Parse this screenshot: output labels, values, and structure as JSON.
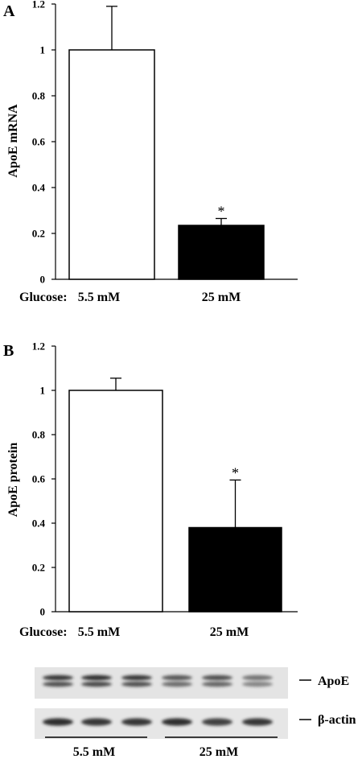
{
  "figure": {
    "x_prefix": "Glucose:"
  },
  "chart_data": [
    {
      "type": "bar",
      "panel_label": "A",
      "ylabel": "ApoE mRNA",
      "categories": [
        "5.5 mM",
        "25 mM"
      ],
      "values": [
        1.0,
        0.235
      ],
      "errors": [
        0.19,
        0.03
      ],
      "significance": [
        "",
        "*"
      ],
      "bar_colors": [
        "#ffffff",
        "#000000"
      ],
      "ylim": [
        0,
        1.2
      ],
      "yticks": [
        "0",
        "0.2",
        "0.4",
        "0.6",
        "0.8",
        "1",
        "1.2"
      ],
      "grid": false
    },
    {
      "type": "bar",
      "panel_label": "B",
      "ylabel": "ApoE protein",
      "categories": [
        "5.5 mM",
        "25 mM"
      ],
      "values": [
        1.0,
        0.38
      ],
      "errors": [
        0.055,
        0.215
      ],
      "significance": [
        "",
        "*"
      ],
      "bar_colors": [
        "#ffffff",
        "#000000"
      ],
      "ylim": [
        0,
        1.2
      ],
      "yticks": [
        "0",
        "0.2",
        "0.4",
        "0.6",
        "0.8",
        "1",
        "1.2"
      ],
      "grid": false
    }
  ],
  "western_blot": {
    "rows": [
      {
        "label": "ApoE",
        "band_intensity": [
          0.85,
          0.9,
          0.85,
          0.65,
          0.7,
          0.45
        ]
      },
      {
        "label": "β-actin",
        "band_intensity": [
          0.9,
          0.85,
          0.85,
          0.9,
          0.8,
          0.85
        ]
      }
    ],
    "groups": [
      "5.5 mM",
      "25 mM"
    ]
  }
}
